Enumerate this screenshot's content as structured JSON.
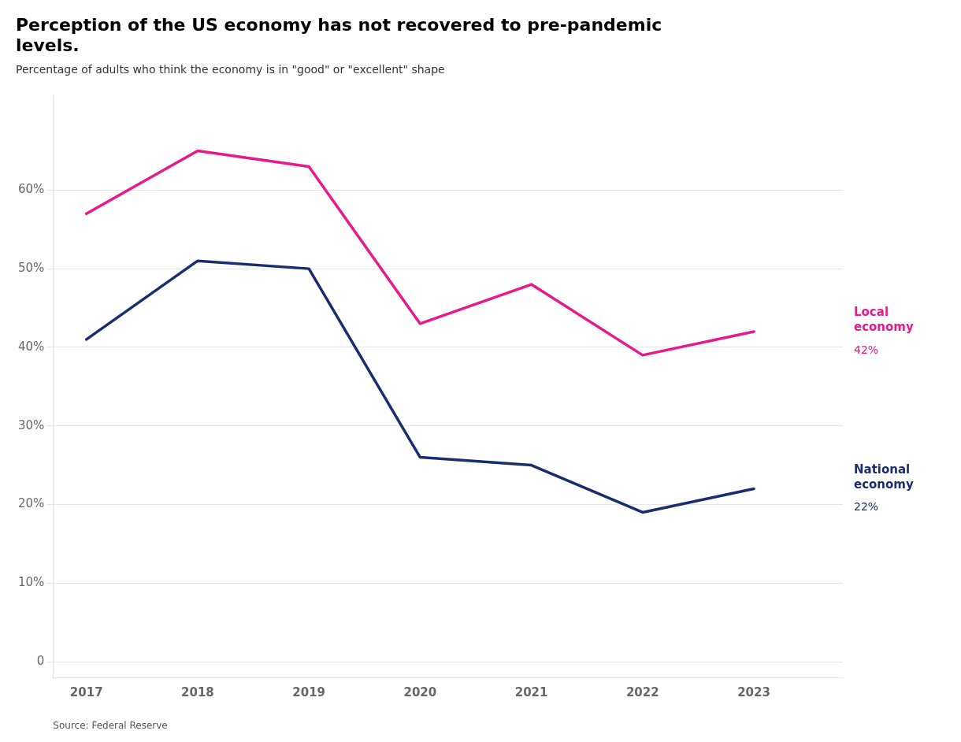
{
  "chart_data": {
    "type": "line",
    "title": [
      "Perception of the US economy has not recovered to pre-pandemic",
      "levels."
    ],
    "subtitle": "Percentage of adults who think the economy is in \"good\" or \"excellent\" shape",
    "source": "Source: Federal Reserve",
    "x": [
      2017,
      2018,
      2019,
      2020,
      2021,
      2022,
      2023
    ],
    "series": [
      {
        "name": "Local economy",
        "color": "#e8198b",
        "values": [
          57,
          65,
          63,
          43,
          48,
          39,
          42
        ]
      },
      {
        "name": "National economy",
        "color": "#1a2e6e",
        "values": [
          41,
          51,
          50,
          26,
          25,
          19,
          22
        ]
      }
    ],
    "annotations": [
      {
        "text": "42%",
        "x": 2023,
        "y": 42,
        "color": "#e8198b"
      },
      {
        "text": "22%",
        "x": 2023,
        "y": 22,
        "color": "#1a2e6e"
      }
    ],
    "xlim": [
      2016.7,
      2023.8
    ],
    "xticks": [
      2017,
      2018,
      2019,
      2020,
      2021,
      2022,
      2023
    ],
    "ylim": [
      -2,
      72
    ],
    "yticks": [
      0,
      {
        "value": 10,
        "label": "10%"
      },
      {
        "value": 20,
        "label": "20%"
      },
      {
        "value": 30,
        "label": "30%"
      },
      {
        "value": 40,
        "label": "40%"
      },
      {
        "value": 50,
        "label": "50%"
      },
      {
        "value": 60,
        "label": "60%"
      }
    ],
    "grid": "y"
  }
}
